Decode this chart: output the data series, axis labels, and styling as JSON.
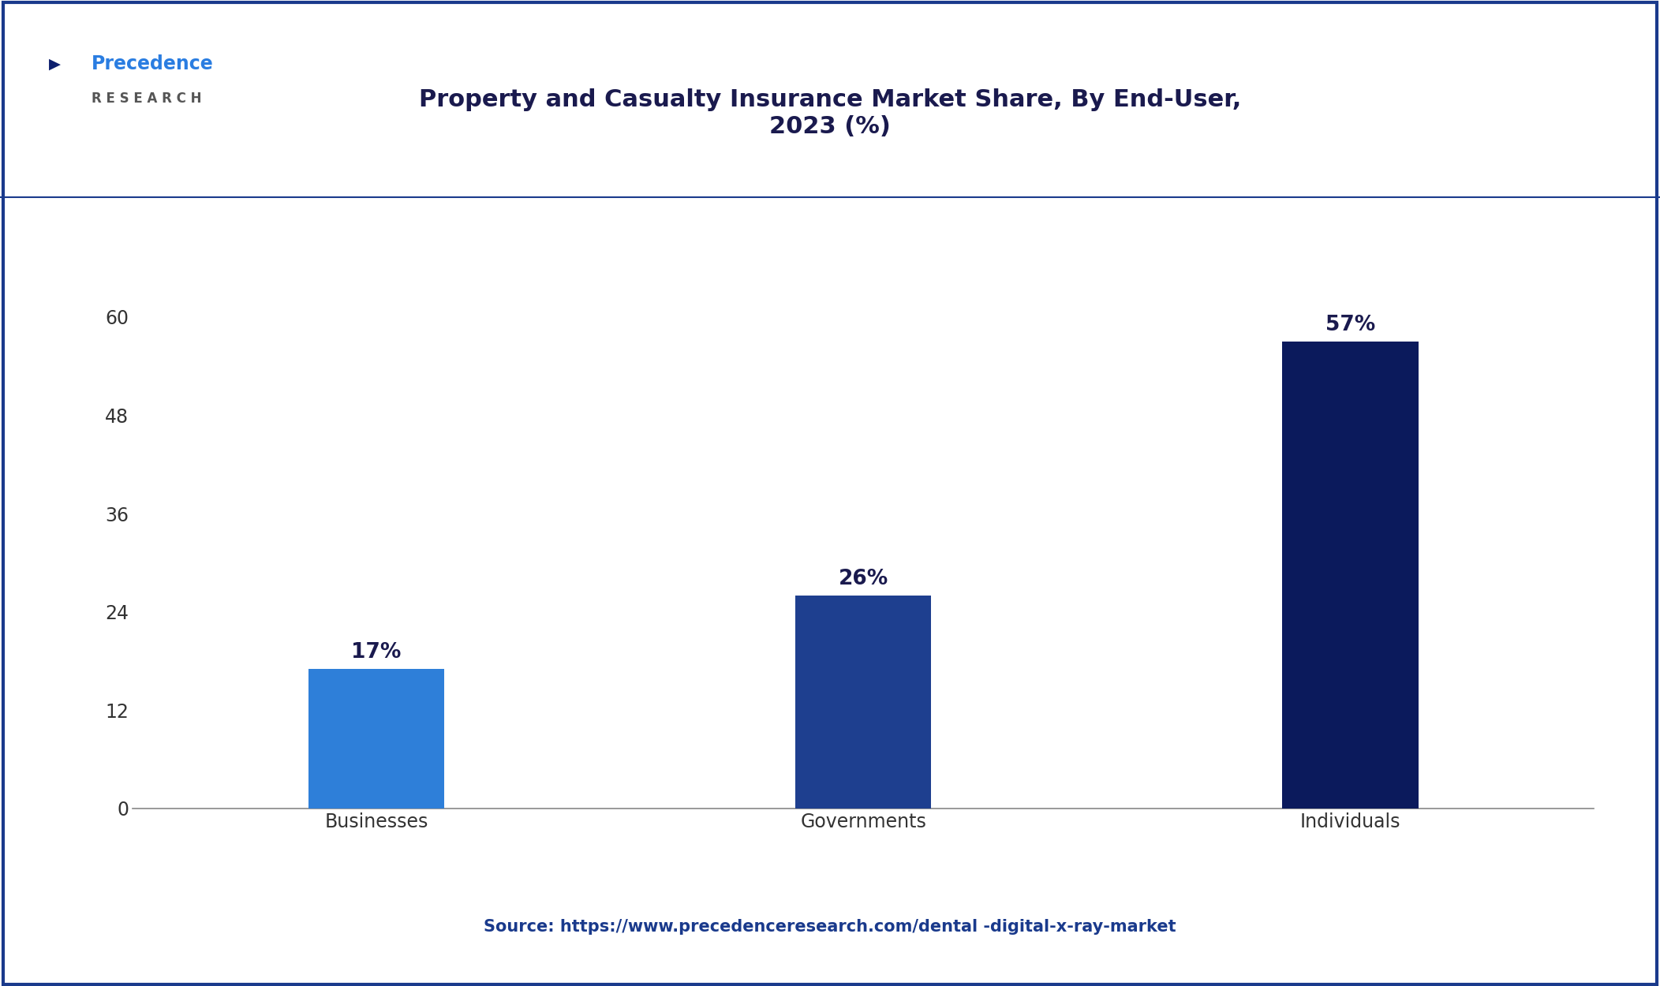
{
  "title": "Property and Casualty Insurance Market Share, By End-User,\n2023 (%)",
  "categories": [
    "Businesses",
    "Governments",
    "Individuals"
  ],
  "values": [
    17,
    26,
    57
  ],
  "bar_colors": [
    "#2e7fd9",
    "#1e3f8f",
    "#0b1a5c"
  ],
  "bar_labels": [
    "17%",
    "26%",
    "57%"
  ],
  "yticks": [
    0,
    12,
    24,
    36,
    48,
    60
  ],
  "ylim": [
    0,
    65
  ],
  "background_color": "#ffffff",
  "plot_bg_color": "#ffffff",
  "source_text": "Source: https://www.precedenceresearch.com/dental -digital-x-ray-market",
  "title_fontsize": 22,
  "tick_fontsize": 17,
  "label_fontsize": 19,
  "source_fontsize": 15,
  "border_color": "#1a3a8c",
  "text_color": "#1a1a4e",
  "bar_width": 0.28
}
